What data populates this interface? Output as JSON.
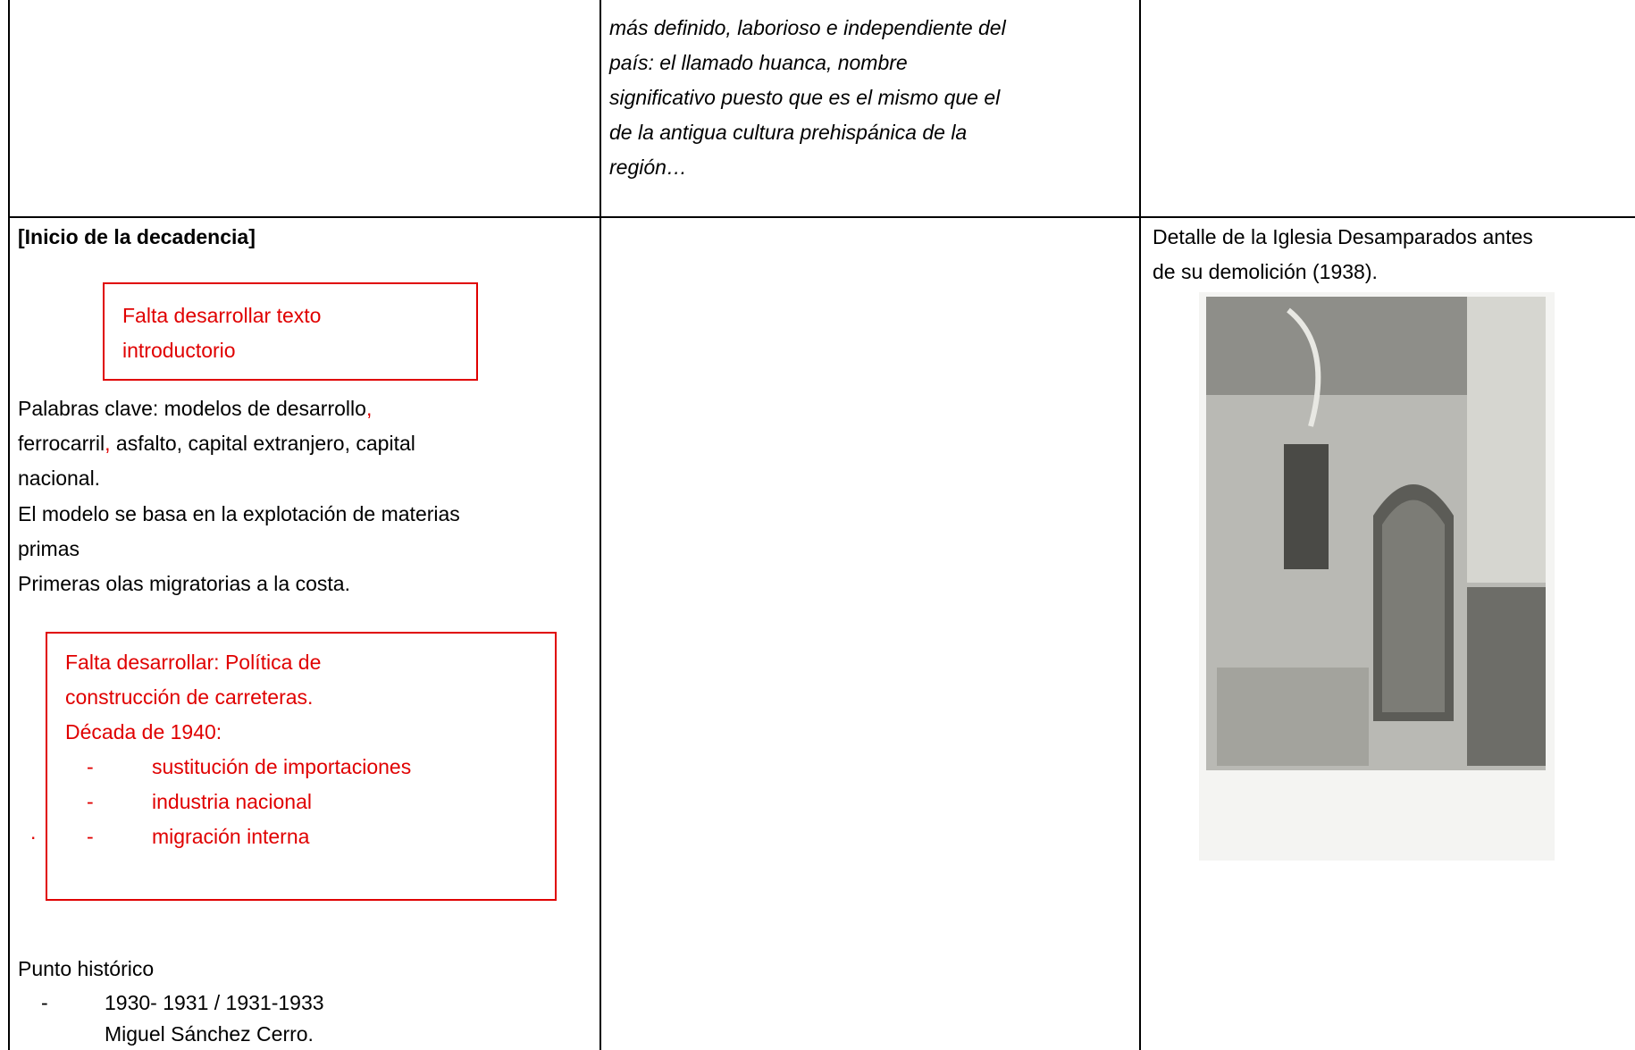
{
  "table": {
    "row1": {
      "middle_lines": [
        "más definido, laborioso e independiente del",
        "país: el llamado huanca, nombre",
        "significativo puesto que es el mismo que el",
        "de la antigua cultura prehispánica de la",
        "región…"
      ]
    },
    "row2": {
      "left": {
        "heading": "[Inicio de la decadencia]",
        "note1_lines": [
          "Falta desarrollar texto",
          "introductorio"
        ],
        "keywords": [
          "Palabras clave: modelos de desarrollo",
          ",",
          "ferrocarril",
          ",",
          " asfalto, capital extranjero, capital",
          "nacional."
        ],
        "lines": [
          "El modelo se basa en la explotación de materias",
          "primas",
          "Primeras olas migratorias a la costa."
        ],
        "note2_lines": [
          "Falta desarrollar: Política de",
          "construcción de carreteras.",
          "Década de 1940:"
        ],
        "note2_bullets": [
          "sustitución de importaciones",
          "industria nacional",
          "migración interna"
        ],
        "bullet_marker": "-",
        "dot": ".",
        "historic_title": "Punto histórico",
        "historic_bullets": [
          [
            "1930- 1931 / 1931-1933",
            "Miguel Sánchez Cerro."
          ]
        ]
      },
      "right": {
        "caption_lines": [
          "Detalle de la Iglesia Desamparados antes",
          "de su demolición (1938)."
        ]
      }
    }
  }
}
